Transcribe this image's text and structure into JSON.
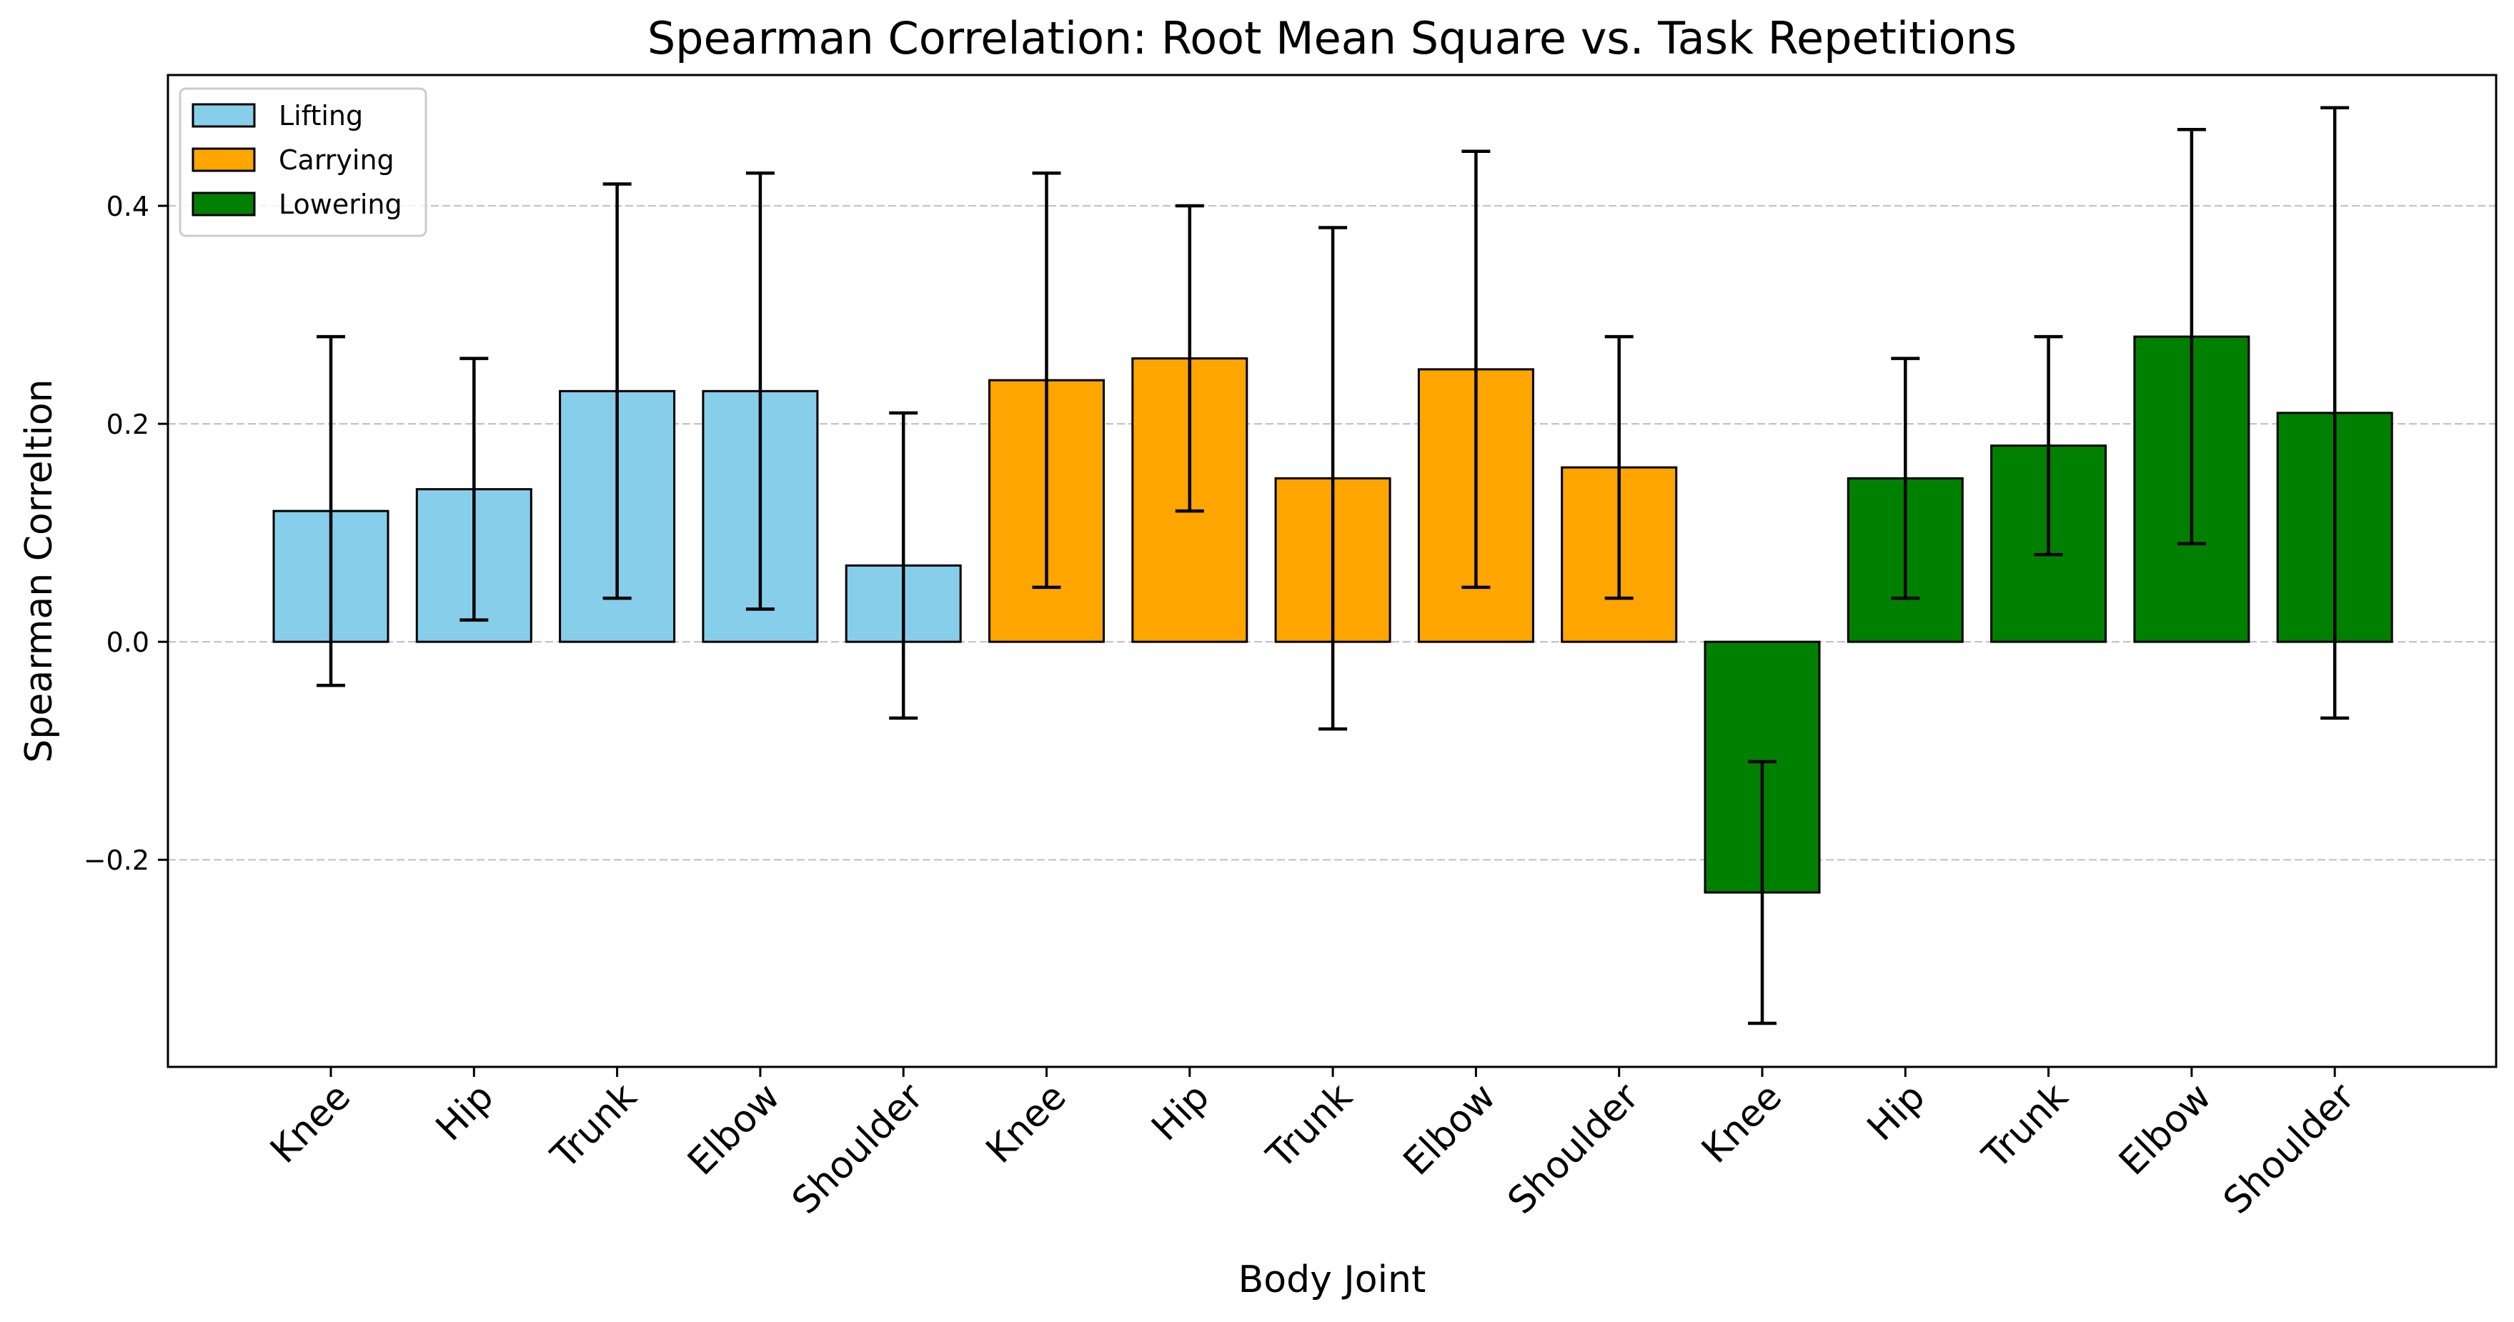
{
  "chart_data": {
    "type": "bar",
    "title": "Spearman Correlation: Root Mean Square vs. Task Repetitions",
    "xlabel": "Body Joint",
    "ylabel": "Spearman Correltion",
    "ylim": [
      -0.39,
      0.52
    ],
    "yticks": [
      -0.2,
      0.0,
      0.2,
      0.4
    ],
    "ytick_labels": [
      "−0.2",
      "0.0",
      "0.2",
      "0.4"
    ],
    "grid": true,
    "legend_position": "top-left",
    "categories": [
      "Knee",
      "Hip",
      "Trunk",
      "Elbow",
      "Shoulder",
      "Knee",
      "Hip",
      "Trunk",
      "Elbow",
      "Shoulder",
      "Knee",
      "Hip",
      "Trunk",
      "Elbow",
      "Shoulder"
    ],
    "series": [
      {
        "name": "Lifting",
        "color": "#87ceeb",
        "positions": [
          0,
          1,
          2,
          3,
          4
        ],
        "values": [
          0.12,
          0.14,
          0.23,
          0.23,
          0.07
        ],
        "err_low": [
          -0.04,
          0.02,
          0.04,
          0.03,
          -0.07
        ],
        "err_high": [
          0.28,
          0.26,
          0.42,
          0.43,
          0.21
        ]
      },
      {
        "name": "Carrying",
        "color": "#ffa500",
        "positions": [
          5,
          6,
          7,
          8,
          9
        ],
        "values": [
          0.24,
          0.26,
          0.15,
          0.25,
          0.16
        ],
        "err_low": [
          0.05,
          0.12,
          -0.08,
          0.05,
          0.04
        ],
        "err_high": [
          0.43,
          0.4,
          0.38,
          0.45,
          0.28
        ]
      },
      {
        "name": "Lowering",
        "color": "#008000",
        "positions": [
          10,
          11,
          12,
          13,
          14
        ],
        "values": [
          -0.23,
          0.15,
          0.18,
          0.28,
          0.21
        ],
        "err_low": [
          -0.35,
          0.04,
          0.08,
          0.09,
          -0.07
        ],
        "err_high": [
          -0.11,
          0.26,
          0.28,
          0.47,
          0.49
        ]
      }
    ]
  }
}
